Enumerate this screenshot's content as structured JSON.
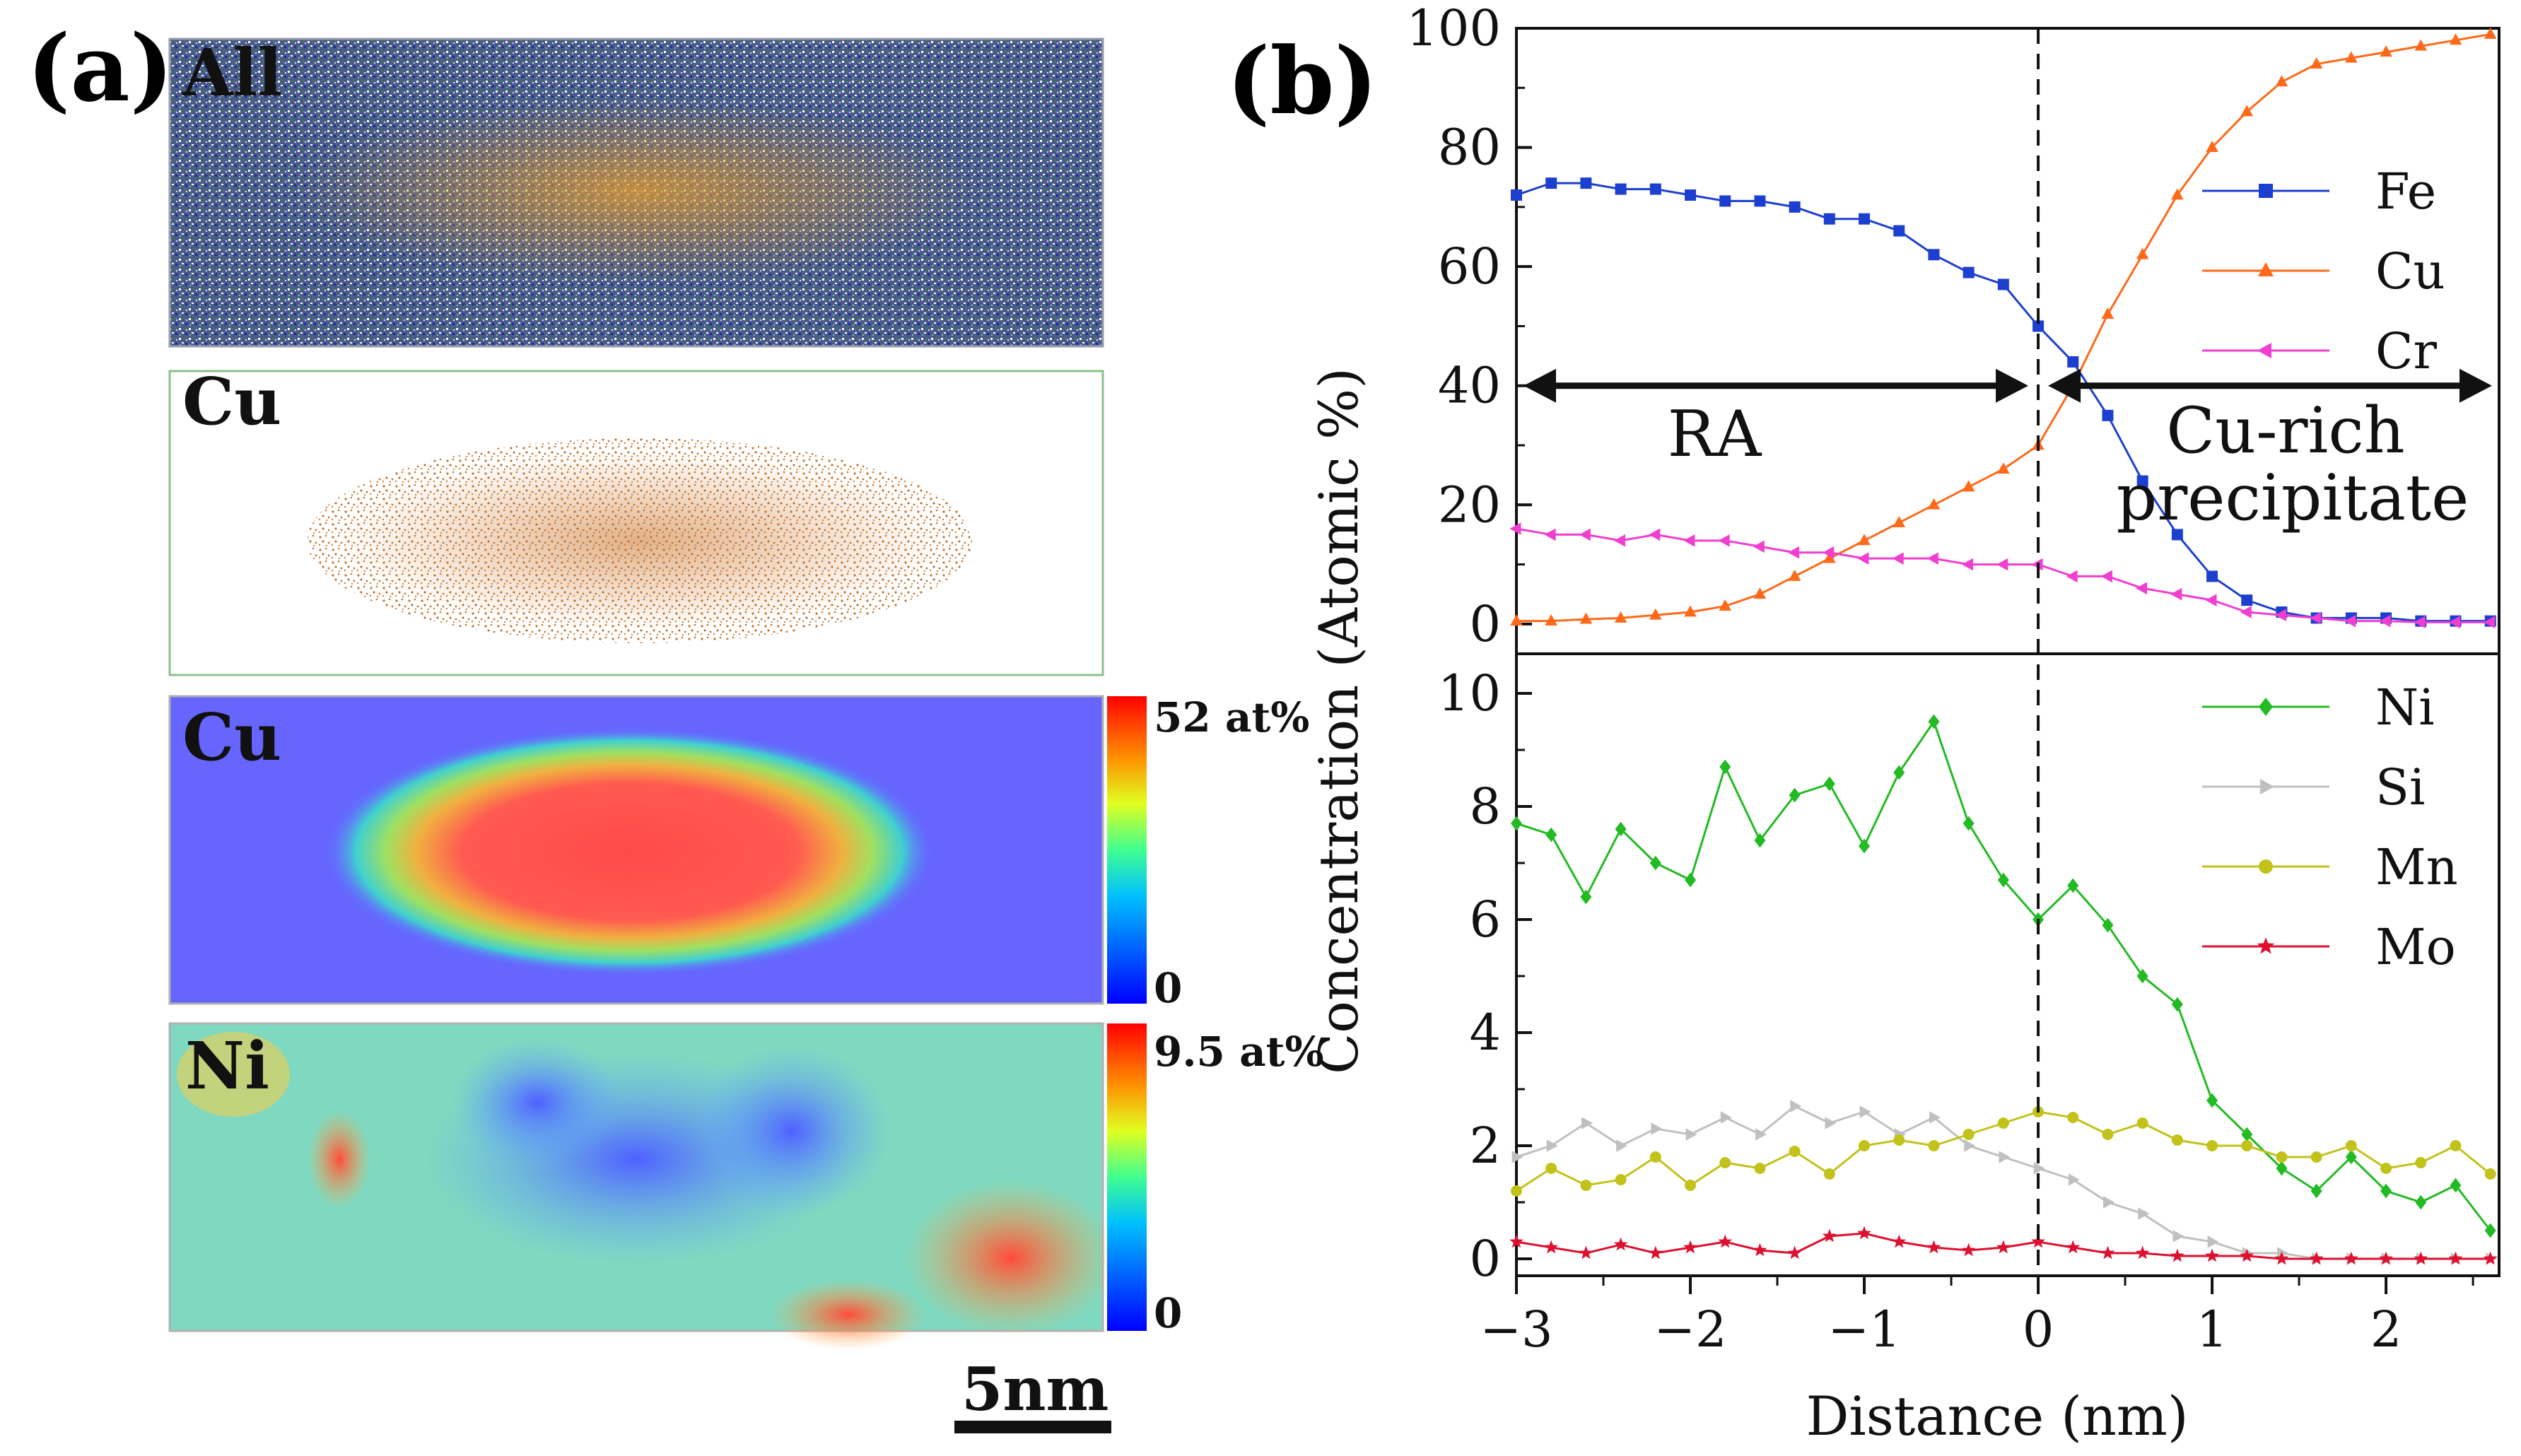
{
  "panel_a": {
    "label": "(a)",
    "maps": [
      {
        "title": "All",
        "kind": "atoms-all"
      },
      {
        "title": "Cu",
        "kind": "atoms-cu"
      },
      {
        "title": "Cu",
        "kind": "heat-cu",
        "colorbar_max": "52 at%",
        "colorbar_min": "0"
      },
      {
        "title": "Ni",
        "kind": "heat-ni",
        "colorbar_max": "9.5 at%",
        "colorbar_min": "0"
      }
    ],
    "scale_bar": "5nm",
    "colors": {
      "cu_atom": "#c8732a",
      "heat_low": "#5a5aff",
      "heat_high": "#ff3a3a"
    }
  },
  "panel_b": {
    "label": "(b)",
    "dashed_line_x": 0,
    "annotations": {
      "left_region": "RA",
      "right_region_line1": "Cu-rich",
      "right_region_line2": "precipitate"
    }
  },
  "chart_data": [
    {
      "type": "line",
      "subplot": "upper",
      "xlabel": "Distance (nm)",
      "ylabel": "Concentration (Atomic %)",
      "xlim": [
        -3,
        2.65
      ],
      "ylim": [
        -5,
        100
      ],
      "y_ticks": [
        0,
        20,
        40,
        60,
        80,
        100
      ],
      "x": [
        -3.0,
        -2.8,
        -2.6,
        -2.4,
        -2.2,
        -2.0,
        -1.8,
        -1.6,
        -1.4,
        -1.2,
        -1.0,
        -0.8,
        -0.6,
        -0.4,
        -0.2,
        0.0,
        0.2,
        0.4,
        0.6,
        0.8,
        1.0,
        1.2,
        1.4,
        1.6,
        1.8,
        2.0,
        2.2,
        2.4,
        2.6
      ],
      "series": [
        {
          "name": "Fe",
          "color": "#1c3fd0",
          "marker": "square",
          "values": [
            72,
            74,
            74,
            73,
            73,
            72,
            71,
            71,
            70,
            68,
            68,
            66,
            62,
            59,
            57,
            50,
            44,
            35,
            24,
            15,
            8,
            4,
            2,
            1,
            1,
            1,
            0.5,
            0.5,
            0.5
          ]
        },
        {
          "name": "Cu",
          "color": "#ff6a1a",
          "marker": "triangle-up",
          "values": [
            0.5,
            0.5,
            0.8,
            1,
            1.5,
            2,
            3,
            5,
            8,
            11,
            14,
            17,
            20,
            23,
            26,
            30,
            40,
            52,
            62,
            72,
            80,
            86,
            91,
            94,
            95,
            96,
            97,
            98,
            99
          ]
        },
        {
          "name": "Cr",
          "color": "#f03fd0",
          "marker": "triangle-left",
          "values": [
            16,
            15,
            15,
            14,
            15,
            14,
            14,
            13,
            12,
            12,
            11,
            11,
            11,
            10,
            10,
            10,
            8,
            8,
            6,
            5,
            4,
            2,
            1.5,
            1,
            0.5,
            0.5,
            0.3,
            0.3,
            0.3
          ]
        }
      ]
    },
    {
      "type": "line",
      "subplot": "lower",
      "xlabel": "Distance (nm)",
      "ylabel": "Concentration (Atomic %)",
      "xlim": [
        -3,
        2.65
      ],
      "ylim": [
        -0.3,
        10.7
      ],
      "x_ticks": [
        -3,
        -2,
        -1,
        0,
        1,
        2
      ],
      "y_ticks": [
        0,
        2,
        4,
        6,
        8,
        10
      ],
      "x": [
        -3.0,
        -2.8,
        -2.6,
        -2.4,
        -2.2,
        -2.0,
        -1.8,
        -1.6,
        -1.4,
        -1.2,
        -1.0,
        -0.8,
        -0.6,
        -0.4,
        -0.2,
        0.0,
        0.2,
        0.4,
        0.6,
        0.8,
        1.0,
        1.2,
        1.4,
        1.6,
        1.8,
        2.0,
        2.2,
        2.4,
        2.6
      ],
      "series": [
        {
          "name": "Ni",
          "color": "#22bb22",
          "marker": "diamond",
          "values": [
            7.7,
            7.5,
            6.4,
            7.6,
            7.0,
            6.7,
            8.7,
            7.4,
            8.2,
            8.4,
            7.3,
            8.6,
            9.5,
            7.7,
            6.7,
            6.0,
            6.6,
            5.9,
            5.0,
            4.5,
            2.8,
            2.2,
            1.6,
            1.2,
            1.8,
            1.2,
            1.0,
            1.3,
            0.5
          ]
        },
        {
          "name": "Si",
          "color": "#c0c0c0",
          "marker": "triangle-right",
          "values": [
            1.8,
            2.0,
            2.4,
            2.0,
            2.3,
            2.2,
            2.5,
            2.2,
            2.7,
            2.4,
            2.6,
            2.2,
            2.5,
            2.0,
            1.8,
            1.6,
            1.4,
            1.0,
            0.8,
            0.4,
            0.3,
            0.1,
            0.1,
            0.0,
            0.0,
            0.0,
            0.0,
            0.0,
            0.0
          ]
        },
        {
          "name": "Mn",
          "color": "#c2c21a",
          "marker": "circle",
          "values": [
            1.2,
            1.6,
            1.3,
            1.4,
            1.8,
            1.3,
            1.7,
            1.6,
            1.9,
            1.5,
            2.0,
            2.1,
            2.0,
            2.2,
            2.4,
            2.6,
            2.5,
            2.2,
            2.4,
            2.1,
            2.0,
            2.0,
            1.8,
            1.8,
            2.0,
            1.6,
            1.7,
            2.0,
            1.5
          ]
        },
        {
          "name": "Mo",
          "color": "#dd1030",
          "marker": "star",
          "values": [
            0.3,
            0.2,
            0.1,
            0.25,
            0.1,
            0.2,
            0.3,
            0.15,
            0.1,
            0.4,
            0.45,
            0.3,
            0.2,
            0.15,
            0.2,
            0.3,
            0.2,
            0.1,
            0.1,
            0.05,
            0.05,
            0.05,
            0.0,
            0.0,
            0.0,
            0.0,
            0.0,
            0.0,
            0.0
          ]
        }
      ]
    }
  ]
}
